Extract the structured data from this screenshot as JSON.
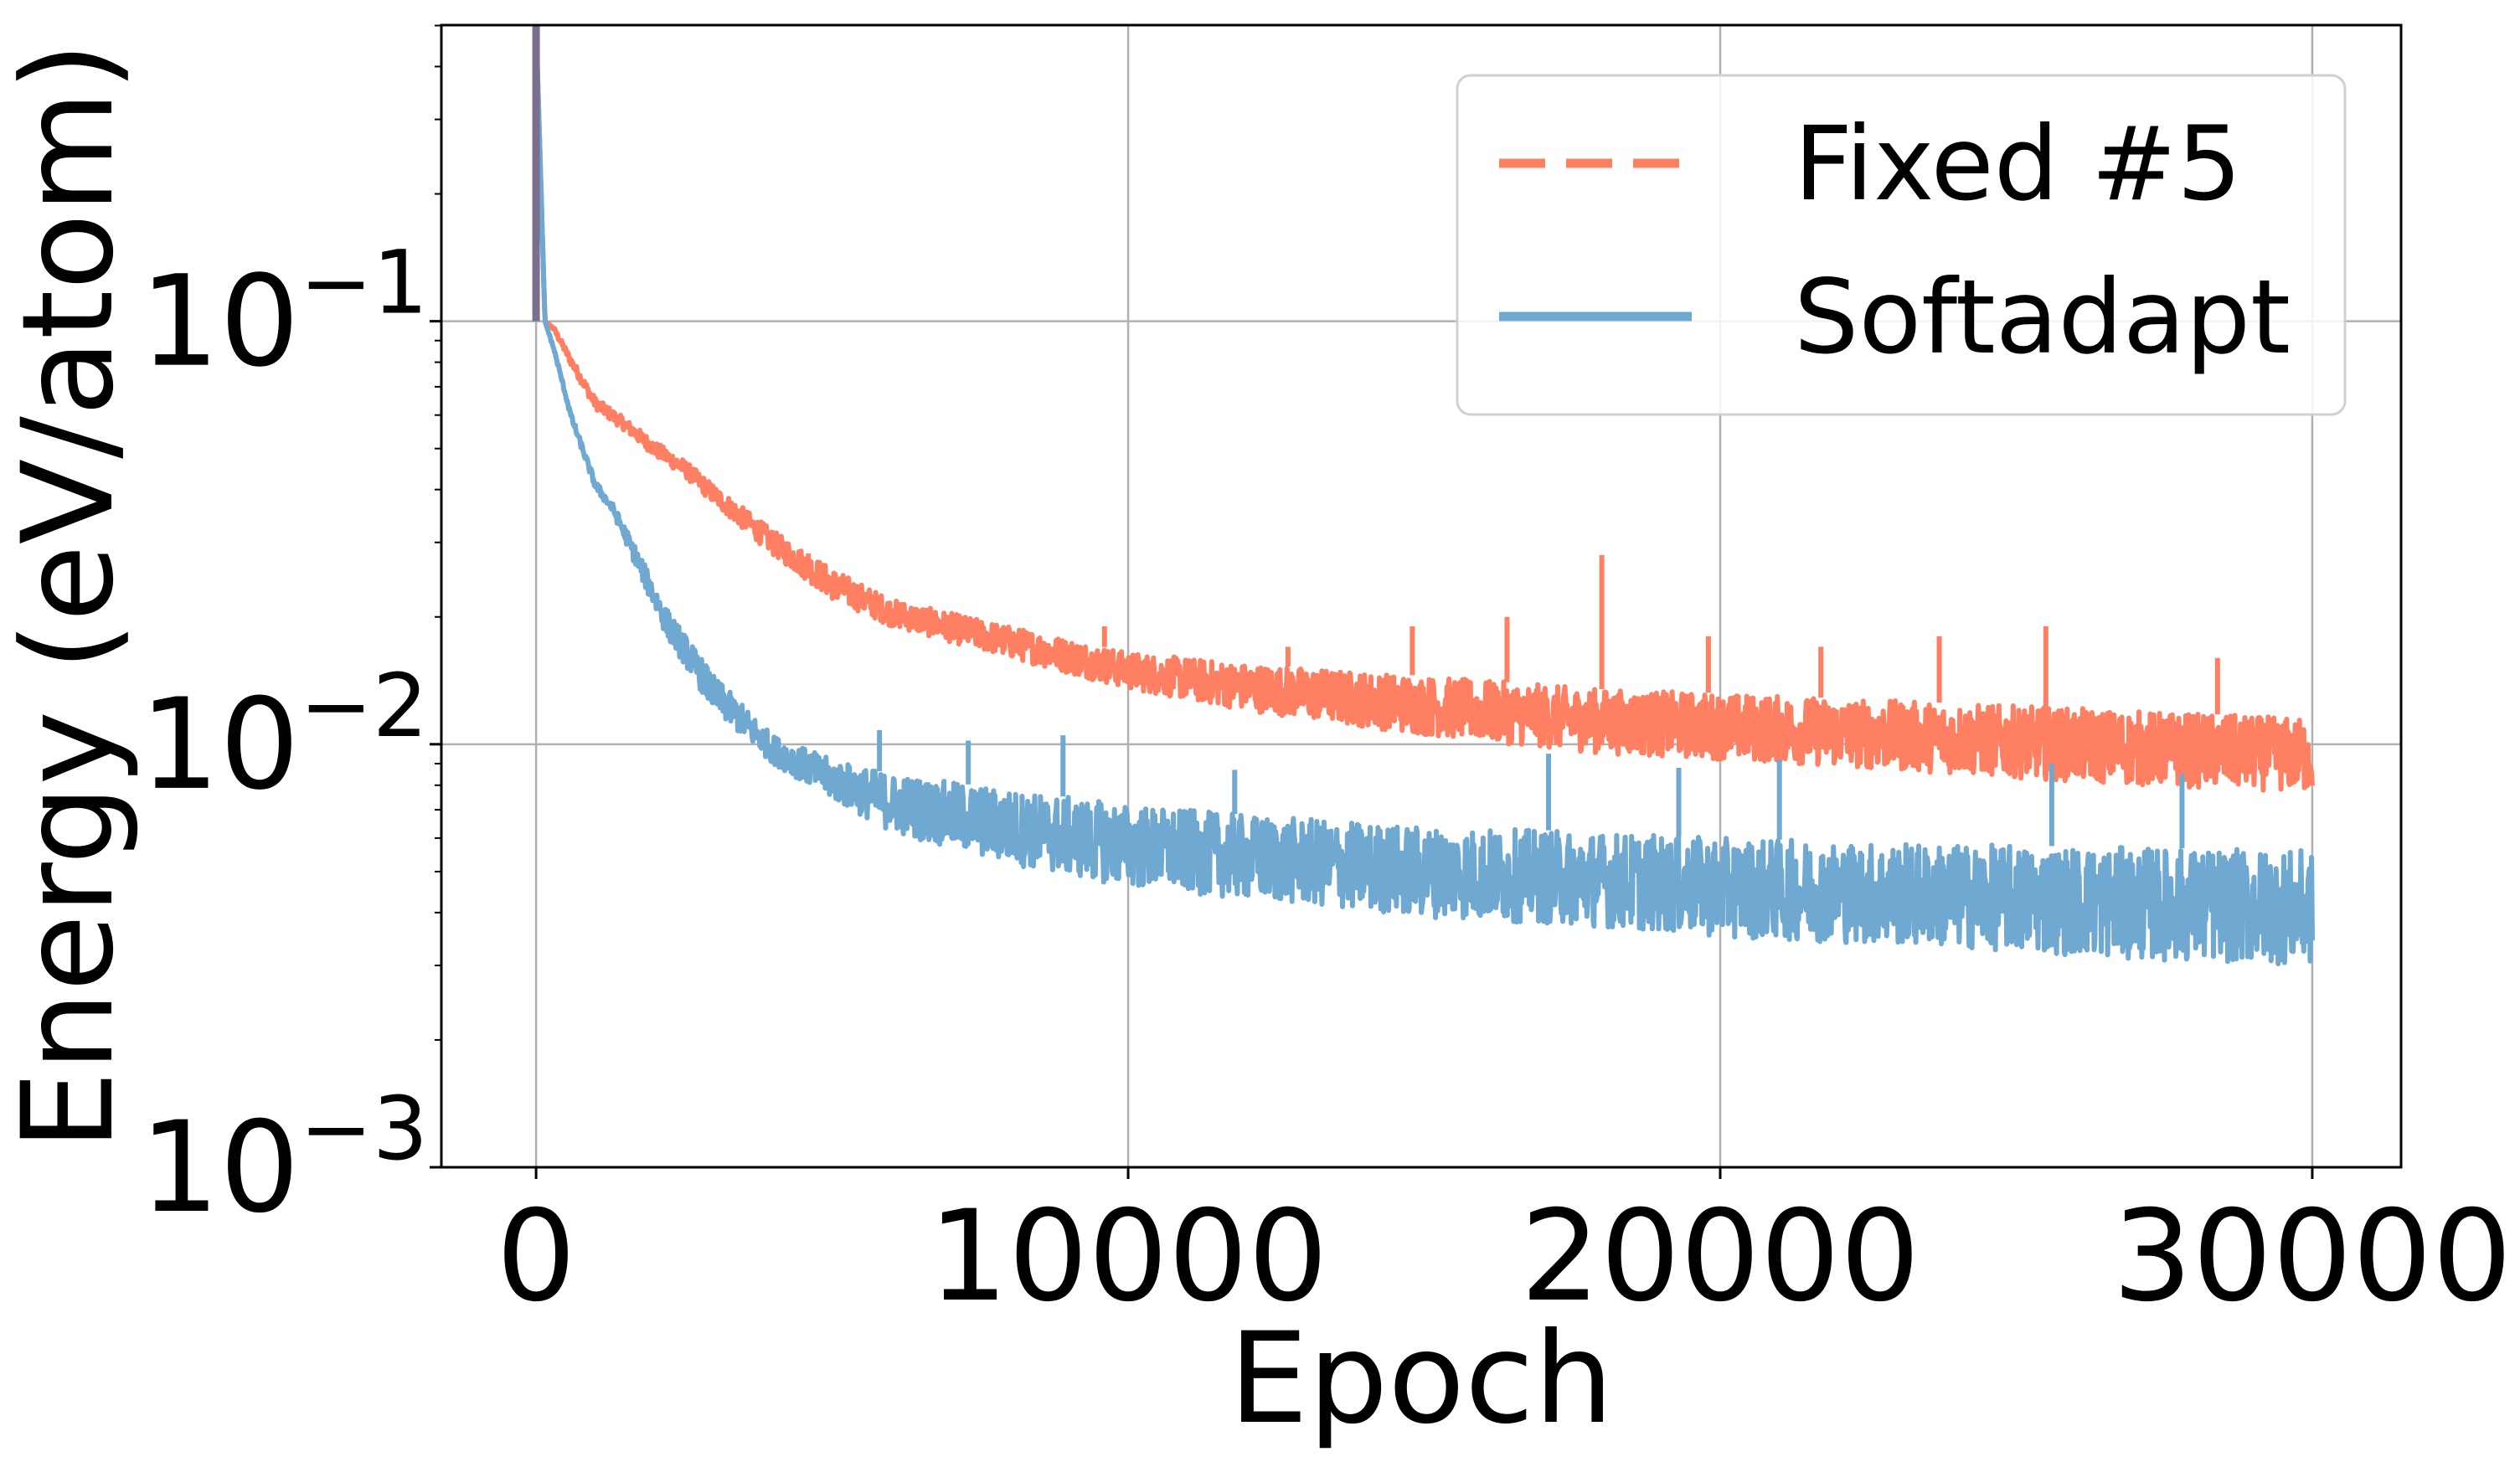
{
  "chart_data": {
    "type": "line",
    "title": "",
    "xlabel": "Epoch",
    "ylabel": "Energy (eV/atom)",
    "xlim": [
      -1600,
      31500
    ],
    "ylim_log10": [
      -3,
      -0.3
    ],
    "yscale": "log",
    "grid": true,
    "legend_position": "top-right",
    "x_ticks": [
      {
        "value": 0,
        "label": "0"
      },
      {
        "value": 10000,
        "label": "10000"
      },
      {
        "value": 20000,
        "label": "20000"
      },
      {
        "value": 30000,
        "label": "30000"
      }
    ],
    "y_ticks": [
      {
        "exp": -1,
        "base": "10",
        "sup": "−1"
      },
      {
        "exp": -2,
        "base": "10",
        "sup": "−2"
      },
      {
        "exp": -3,
        "base": "10",
        "sup": "−3"
      }
    ],
    "series": [
      {
        "name": "Fixed #5",
        "color": "#ff7f62",
        "style": "dashed",
        "x": [
          0,
          150,
          300,
          600,
          1000,
          1500,
          2000,
          2500,
          3000,
          4000,
          5000,
          6000,
          8000,
          10000,
          12000,
          15000,
          18000,
          20000,
          24000,
          27000,
          30000
        ],
        "lower": [
          0.5,
          0.1,
          0.095,
          0.078,
          0.062,
          0.055,
          0.048,
          0.043,
          0.037,
          0.028,
          0.022,
          0.019,
          0.016,
          0.0135,
          0.012,
          0.0105,
          0.0095,
          0.0092,
          0.0085,
          0.008,
          0.0077
        ],
        "upper": [
          0.5,
          0.1,
          0.097,
          0.082,
          0.066,
          0.059,
          0.052,
          0.047,
          0.041,
          0.032,
          0.026,
          0.022,
          0.019,
          0.0165,
          0.0155,
          0.0145,
          0.0135,
          0.0132,
          0.0125,
          0.012,
          0.0115
        ],
        "spikes": [
          {
            "x": 4600,
            "y": 0.025
          },
          {
            "x": 6200,
            "y": 0.021
          },
          {
            "x": 9600,
            "y": 0.019
          },
          {
            "x": 12700,
            "y": 0.017
          },
          {
            "x": 14800,
            "y": 0.019
          },
          {
            "x": 16400,
            "y": 0.02
          },
          {
            "x": 18000,
            "y": 0.028
          },
          {
            "x": 19800,
            "y": 0.018
          },
          {
            "x": 21700,
            "y": 0.017
          },
          {
            "x": 23700,
            "y": 0.018
          },
          {
            "x": 25500,
            "y": 0.019
          },
          {
            "x": 28400,
            "y": 0.016
          }
        ]
      },
      {
        "name": "Softadapt",
        "color": "#6fa8d1",
        "style": "solid",
        "x": [
          0,
          150,
          300,
          600,
          1000,
          1300,
          1700,
          2200,
          3000,
          4000,
          5000,
          6000,
          8000,
          10000,
          12000,
          15000,
          18000,
          20000,
          24000,
          27000,
          30000
        ],
        "lower": [
          0.5,
          0.1,
          0.085,
          0.058,
          0.04,
          0.035,
          0.026,
          0.018,
          0.012,
          0.009,
          0.0074,
          0.0062,
          0.0052,
          0.0046,
          0.0043,
          0.0039,
          0.0037,
          0.0035,
          0.0033,
          0.0031,
          0.003
        ],
        "upper": [
          0.5,
          0.1,
          0.087,
          0.06,
          0.042,
          0.037,
          0.029,
          0.021,
          0.0145,
          0.0105,
          0.0092,
          0.0085,
          0.0078,
          0.0072,
          0.0068,
          0.0064,
          0.0062,
          0.006,
          0.0058,
          0.0057,
          0.0056
        ],
        "spikes": [
          {
            "x": 5800,
            "y": 0.0108
          },
          {
            "x": 7300,
            "y": 0.0102
          },
          {
            "x": 8900,
            "y": 0.0105
          },
          {
            "x": 11800,
            "y": 0.0087
          },
          {
            "x": 17100,
            "y": 0.0095
          },
          {
            "x": 19300,
            "y": 0.0088
          },
          {
            "x": 21000,
            "y": 0.0092
          },
          {
            "x": 25600,
            "y": 0.009
          },
          {
            "x": 27800,
            "y": 0.0085
          }
        ]
      }
    ]
  }
}
